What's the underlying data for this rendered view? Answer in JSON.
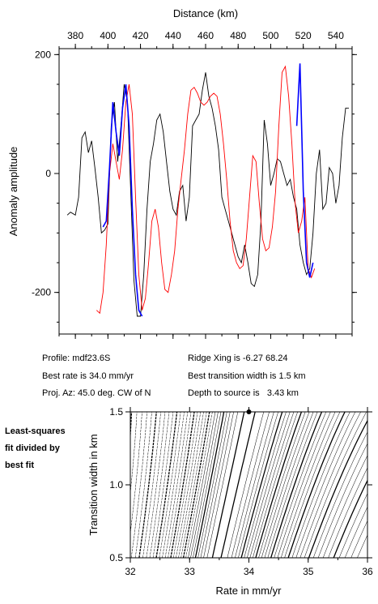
{
  "chart_data": [
    {
      "type": "line",
      "title": "",
      "xlabel": "Distance (km)",
      "ylabel": "Anomaly amplitude",
      "xlim": [
        370,
        550
      ],
      "ylim": [
        -270,
        210
      ],
      "x_ticks": [
        "380",
        "400",
        "420",
        "440",
        "460",
        "480",
        "500",
        "520",
        "540"
      ],
      "y_ticks": [
        "200",
        "0",
        "-200"
      ],
      "x_tick_values": [
        380,
        400,
        420,
        440,
        460,
        480,
        500,
        520,
        540
      ],
      "y_tick_values": [
        200,
        0,
        -200
      ],
      "colors": {
        "observed": "#000000",
        "model": "#ff0000",
        "fit": "#0000ff"
      },
      "series": [
        {
          "role": "observed",
          "x": [
            375,
            377,
            380,
            382,
            384,
            386,
            388,
            390,
            392,
            394,
            396,
            398,
            400,
            402,
            404,
            406,
            408,
            410,
            412,
            414,
            416,
            418,
            420,
            422,
            424,
            426,
            428,
            430,
            432,
            434,
            436,
            438,
            440,
            442,
            444,
            446,
            448,
            450,
            452,
            454,
            456,
            458,
            460,
            462,
            464,
            466,
            468,
            470,
            472,
            474,
            476,
            478,
            480,
            482,
            484,
            486,
            488,
            490,
            492,
            494,
            496,
            498,
            500,
            502,
            504,
            506,
            508,
            510,
            512,
            514,
            516,
            518,
            520,
            522,
            524,
            526,
            528,
            530,
            532,
            534,
            536,
            538,
            540,
            542,
            544,
            546,
            548
          ],
          "y": [
            -70,
            -65,
            -70,
            -40,
            60,
            70,
            35,
            55,
            10,
            -40,
            -100,
            -95,
            -85,
            80,
            120,
            20,
            80,
            150,
            120,
            -30,
            -180,
            -240,
            -240,
            -170,
            -60,
            20,
            50,
            90,
            100,
            70,
            20,
            -30,
            -60,
            -70,
            -30,
            -20,
            -80,
            -40,
            80,
            90,
            100,
            140,
            170,
            130,
            110,
            80,
            40,
            -40,
            -60,
            -80,
            -100,
            -120,
            -140,
            -150,
            -120,
            -150,
            -185,
            -190,
            -170,
            -80,
            90,
            50,
            -20,
            0,
            25,
            20,
            0,
            -20,
            -10,
            -40,
            -60,
            -120,
            -150,
            -170,
            -160,
            -100,
            0,
            40,
            -60,
            -50,
            10,
            0,
            -50,
            -20,
            60,
            110,
            110
          ]
        },
        {
          "role": "model",
          "x": [
            393,
            395,
            397,
            399,
            401,
            403,
            405,
            407,
            409,
            411,
            413,
            415,
            417,
            419,
            421,
            423,
            425,
            427,
            429,
            431,
            433,
            435,
            437,
            439,
            441,
            443,
            445,
            447,
            449,
            451,
            453,
            455,
            457,
            459,
            461,
            463,
            465,
            467,
            469,
            471,
            473,
            475,
            477,
            479,
            481,
            483,
            485,
            487,
            489,
            491,
            493,
            495,
            497,
            499,
            501,
            503,
            505,
            507,
            509,
            511,
            513,
            515,
            517,
            519,
            521,
            523,
            525,
            527
          ],
          "y": [
            -230,
            -235,
            -200,
            -120,
            0,
            50,
            20,
            -10,
            40,
            120,
            150,
            100,
            -40,
            -170,
            -230,
            -210,
            -150,
            -80,
            -60,
            -90,
            -150,
            -195,
            -200,
            -170,
            -130,
            -60,
            -10,
            40,
            100,
            140,
            145,
            135,
            120,
            115,
            120,
            130,
            135,
            130,
            100,
            50,
            -10,
            -80,
            -130,
            -150,
            -160,
            -155,
            -110,
            -40,
            30,
            20,
            -50,
            -110,
            -130,
            -125,
            -90,
            -30,
            80,
            170,
            180,
            130,
            50,
            -50,
            -100,
            -80,
            -40,
            -160,
            -175,
            -160
          ]
        },
        {
          "role": "fit",
          "x": [
            397,
            399,
            401,
            403,
            405,
            407,
            409,
            411,
            413,
            415,
            417,
            419,
            421
          ],
          "y": [
            -90,
            -80,
            10,
            120,
            70,
            30,
            110,
            150,
            80,
            -60,
            -170,
            -230,
            -240
          ]
        },
        {
          "role": "fit",
          "x": [
            516,
            518,
            520,
            522,
            524,
            526
          ],
          "y": [
            80,
            185,
            -30,
            -150,
            -175,
            -150
          ]
        }
      ]
    },
    {
      "type": "contour",
      "title": "",
      "xlabel": "Rate in mm/yr",
      "ylabel": "Transition width in km",
      "xlim": [
        32,
        36
      ],
      "ylim": [
        0.5,
        1.5
      ],
      "x_ticks": [
        "32",
        "33",
        "34",
        "35",
        "36"
      ],
      "y_ticks": [
        "0.5",
        "1.0",
        "1.5"
      ],
      "x_tick_values": [
        32,
        33,
        34,
        35,
        36
      ],
      "y_tick_values": [
        0.5,
        1.0,
        1.5
      ],
      "best_fit_marker": {
        "x": 34.0,
        "y": 1.5
      }
    }
  ],
  "info": {
    "profile": "Profile: mdf23.6S",
    "best_rate": "Best rate is 34.0 mm/yr",
    "proj_az": "Proj. Az: 45.0 deg. CW of N",
    "ridge_xing": "Ridge Xing is -6.27 68.24",
    "best_width": "Best transition width is 1.5 km",
    "depth": "Depth to source is   3.43 km"
  },
  "side_note": {
    "line1": "Least-squares",
    "line2": "fit divided by",
    "line3": "best fit"
  }
}
